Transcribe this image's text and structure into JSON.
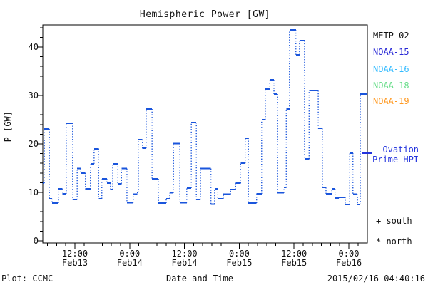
{
  "title": "Hemispheric Power [GW]",
  "y_axis": {
    "label": "P [GW]",
    "major_ticks": [
      0,
      10,
      20,
      30,
      40
    ],
    "minor_step": 2,
    "max": 44
  },
  "x_axis": {
    "major_ticks": [
      {
        "t": 12,
        "time": "12:00",
        "date": "Feb13"
      },
      {
        "t": 24,
        "time": "0:00",
        "date": "Feb14"
      },
      {
        "t": 36,
        "time": "12:00",
        "date": "Feb14"
      },
      {
        "t": 48,
        "time": "0:00",
        "date": "Feb15"
      },
      {
        "t": 60,
        "time": "12:00",
        "date": "Feb15"
      },
      {
        "t": 72,
        "time": "0:00",
        "date": "Feb16"
      }
    ],
    "minor_step_hours": 2,
    "start_hours": 4.97,
    "end_hours": 75.9
  },
  "legend": {
    "satellites": [
      {
        "name": "METP-02",
        "color": "#111111"
      },
      {
        "name": "NOAA-15",
        "color": "#2929D6"
      },
      {
        "name": "NOAA-16",
        "color": "#33BBFF"
      },
      {
        "name": "NOAA-18",
        "color": "#66DD88"
      },
      {
        "name": "NOAA-19",
        "color": "#FF9922"
      }
    ],
    "model_label_line1": "— Ovation",
    "model_label_line2": "Prime HPI",
    "model_color": "#2233DD",
    "south_marker": "+ south",
    "north_marker": "* north"
  },
  "footer": {
    "credit": "Plot: CCMC",
    "xlabel": "Date and Time",
    "timestamp": "2015/02/16 04:40:16"
  },
  "chart_data": {
    "type": "line",
    "style": "step",
    "title": "Hemispheric Power [GW]",
    "xlabel": "Date and Time",
    "ylabel": "P [GW]",
    "ylim": [
      0,
      44
    ],
    "x_unit": "hours since 2015-02-13 00:00 UT",
    "grid": false,
    "legend_position": "right",
    "series": [
      {
        "name": "Ovation Prime HPI",
        "color": "#1A55DC",
        "line_style": "horizontal steps joined by dotted verticals",
        "end_hours": 75.9,
        "steps": [
          [
            4.97,
            11.9
          ],
          [
            5.3,
            23.1
          ],
          [
            6.4,
            8.7
          ],
          [
            7.0,
            7.8
          ],
          [
            8.4,
            10.7
          ],
          [
            9.3,
            9.7
          ],
          [
            10.1,
            24.3
          ],
          [
            11.5,
            8.5
          ],
          [
            12.5,
            14.9
          ],
          [
            13.3,
            14.0
          ],
          [
            14.3,
            10.7
          ],
          [
            15.4,
            15.9
          ],
          [
            16.2,
            19.0
          ],
          [
            17.2,
            8.7
          ],
          [
            17.9,
            12.8
          ],
          [
            19.0,
            11.9
          ],
          [
            19.8,
            10.6
          ],
          [
            20.3,
            15.9
          ],
          [
            21.4,
            11.8
          ],
          [
            22.2,
            14.9
          ],
          [
            23.4,
            7.9
          ],
          [
            24.8,
            9.6
          ],
          [
            25.6,
            10.0
          ],
          [
            25.9,
            20.9
          ],
          [
            26.8,
            19.1
          ],
          [
            27.6,
            27.2
          ],
          [
            28.9,
            12.8
          ],
          [
            30.3,
            7.8
          ],
          [
            32.0,
            8.7
          ],
          [
            32.8,
            9.9
          ],
          [
            33.6,
            20.1
          ],
          [
            35.0,
            7.9
          ],
          [
            36.5,
            10.9
          ],
          [
            37.5,
            24.4
          ],
          [
            38.6,
            8.5
          ],
          [
            39.5,
            14.9
          ],
          [
            41.8,
            7.6
          ],
          [
            42.6,
            10.7
          ],
          [
            43.3,
            8.7
          ],
          [
            44.5,
            9.6
          ],
          [
            46.1,
            10.6
          ],
          [
            47.2,
            11.9
          ],
          [
            48.3,
            16.0
          ],
          [
            49.3,
            21.2
          ],
          [
            50.0,
            7.8
          ],
          [
            51.8,
            9.7
          ],
          [
            52.9,
            25.0
          ],
          [
            53.7,
            31.3
          ],
          [
            54.7,
            33.2
          ],
          [
            55.6,
            30.3
          ],
          [
            56.4,
            9.9
          ],
          [
            57.8,
            11.0
          ],
          [
            58.3,
            27.2
          ],
          [
            59.0,
            43.5
          ],
          [
            60.4,
            38.4
          ],
          [
            61.2,
            41.3
          ],
          [
            62.3,
            16.9
          ],
          [
            63.3,
            31.0
          ],
          [
            65.3,
            23.2
          ],
          [
            66.2,
            11.0
          ],
          [
            67.0,
            9.7
          ],
          [
            68.3,
            10.7
          ],
          [
            69.0,
            8.8
          ],
          [
            69.8,
            9.0
          ],
          [
            71.2,
            7.5
          ],
          [
            72.2,
            18.1
          ],
          [
            72.9,
            9.6
          ],
          [
            73.9,
            7.5
          ],
          [
            74.5,
            30.3
          ]
        ]
      }
    ]
  }
}
